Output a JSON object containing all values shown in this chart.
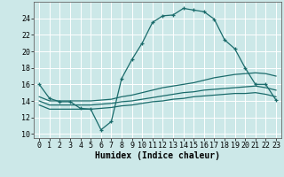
{
  "xlabel": "Humidex (Indice chaleur)",
  "background_color": "#cce8e8",
  "grid_color": "#ffffff",
  "line_color": "#1a6b6b",
  "xlim": [
    -0.5,
    23.5
  ],
  "ylim": [
    9.5,
    26.0
  ],
  "xticks": [
    0,
    1,
    2,
    3,
    4,
    5,
    6,
    7,
    8,
    9,
    10,
    11,
    12,
    13,
    14,
    15,
    16,
    17,
    18,
    19,
    20,
    21,
    22,
    23
  ],
  "yticks": [
    10,
    12,
    14,
    16,
    18,
    20,
    22,
    24
  ],
  "line1_x": [
    0,
    1,
    2,
    3,
    4,
    5,
    6,
    7,
    8,
    9,
    10,
    11,
    12,
    13,
    14,
    15,
    16,
    17,
    18,
    19,
    20,
    21,
    22,
    23
  ],
  "line1_y": [
    16.0,
    14.3,
    13.9,
    13.9,
    13.1,
    13.0,
    10.5,
    11.5,
    16.7,
    19.0,
    21.0,
    23.5,
    24.3,
    24.4,
    25.2,
    25.0,
    24.8,
    23.9,
    21.4,
    20.3,
    18.0,
    16.0,
    16.0,
    14.1
  ],
  "line2_x": [
    0,
    1,
    2,
    3,
    4,
    5,
    6,
    7,
    8,
    9,
    10,
    11,
    12,
    13,
    14,
    15,
    16,
    17,
    18,
    19,
    20,
    21,
    22,
    23
  ],
  "line2_y": [
    14.5,
    14.0,
    14.0,
    14.0,
    14.0,
    14.0,
    14.1,
    14.2,
    14.5,
    14.7,
    15.0,
    15.3,
    15.6,
    15.8,
    16.0,
    16.2,
    16.5,
    16.8,
    17.0,
    17.2,
    17.3,
    17.4,
    17.3,
    17.0
  ],
  "line3_x": [
    0,
    1,
    2,
    3,
    4,
    5,
    6,
    7,
    8,
    9,
    10,
    11,
    12,
    13,
    14,
    15,
    16,
    17,
    18,
    19,
    20,
    21,
    22,
    23
  ],
  "line3_y": [
    14.0,
    13.5,
    13.5,
    13.5,
    13.5,
    13.5,
    13.6,
    13.7,
    13.9,
    14.0,
    14.2,
    14.4,
    14.6,
    14.8,
    15.0,
    15.1,
    15.3,
    15.4,
    15.5,
    15.6,
    15.7,
    15.8,
    15.6,
    15.3
  ],
  "line4_x": [
    0,
    1,
    2,
    3,
    4,
    5,
    6,
    7,
    8,
    9,
    10,
    11,
    12,
    13,
    14,
    15,
    16,
    17,
    18,
    19,
    20,
    21,
    22,
    23
  ],
  "line4_y": [
    13.5,
    13.0,
    13.0,
    13.0,
    13.0,
    13.0,
    13.1,
    13.2,
    13.4,
    13.5,
    13.7,
    13.9,
    14.0,
    14.2,
    14.3,
    14.5,
    14.6,
    14.7,
    14.8,
    14.9,
    14.9,
    15.0,
    14.8,
    14.5
  ],
  "tick_fontsize": 6,
  "xlabel_fontsize": 7
}
